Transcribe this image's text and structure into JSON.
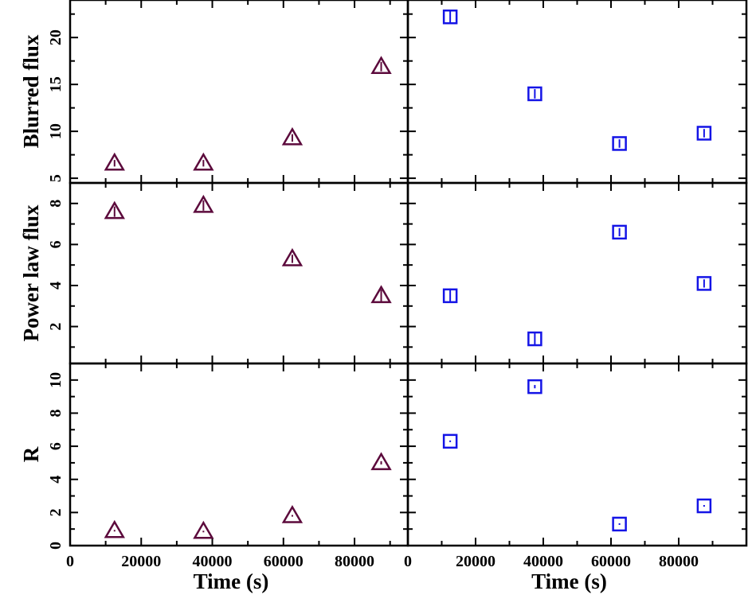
{
  "chart_data": [
    {
      "type": "scatter",
      "ylabel": "Blurred flux",
      "xlim": [
        0,
        95000
      ],
      "ylim": [
        4.5,
        24
      ],
      "yticks": [
        5,
        10,
        15,
        20
      ],
      "series": [
        {
          "marker": "triangle",
          "color": "#5c0a3c",
          "x": [
            12500,
            37500,
            62500,
            87500
          ],
          "y": [
            6.6,
            6.6,
            9.3,
            16.9
          ],
          "err": [
            0.35,
            0.35,
            0.4,
            0.5
          ]
        }
      ]
    },
    {
      "type": "scatter",
      "xlim": [
        0,
        100000
      ],
      "ylim": [
        4.5,
        24
      ],
      "series": [
        {
          "marker": "square",
          "color": "#1414e6",
          "x": [
            12500,
            37500,
            62500,
            87500
          ],
          "y": [
            22.2,
            14.0,
            8.7,
            9.8
          ],
          "err": [
            0.6,
            0.5,
            0.45,
            0.45
          ]
        }
      ]
    },
    {
      "type": "scatter",
      "ylabel": "Power law flux",
      "xlim": [
        0,
        95000
      ],
      "ylim": [
        0.2,
        9
      ],
      "yticks": [
        2,
        4,
        6,
        8
      ],
      "series": [
        {
          "marker": "triangle",
          "color": "#5c0a3c",
          "x": [
            12500,
            37500,
            62500,
            87500
          ],
          "y": [
            7.6,
            7.9,
            5.3,
            3.5
          ],
          "err": [
            0.25,
            0.25,
            0.2,
            0.3
          ]
        }
      ]
    },
    {
      "type": "scatter",
      "xlim": [
        0,
        100000
      ],
      "ylim": [
        0.2,
        9
      ],
      "series": [
        {
          "marker": "square",
          "color": "#1414e6",
          "x": [
            12500,
            37500,
            62500,
            87500
          ],
          "y": [
            3.5,
            1.4,
            6.6,
            4.1
          ],
          "err": [
            0.35,
            0.3,
            0.2,
            0.2
          ]
        }
      ]
    },
    {
      "type": "scatter",
      "ylabel": "R",
      "xlabel": "Time (s)",
      "xlim": [
        0,
        95000
      ],
      "ylim": [
        0,
        11
      ],
      "yticks": [
        0,
        2,
        4,
        6,
        8,
        10
      ],
      "xticks": [
        0,
        20000,
        40000,
        60000,
        80000
      ],
      "series": [
        {
          "marker": "triangle",
          "color": "#5c0a3c",
          "x": [
            12500,
            37500,
            62500,
            87500
          ],
          "y": [
            0.9,
            0.85,
            1.8,
            5.0
          ],
          "err": [
            0.03,
            0.03,
            0.05,
            0.1
          ]
        }
      ]
    },
    {
      "type": "scatter",
      "xlabel": "Time (s)",
      "xlim": [
        0,
        100000
      ],
      "ylim": [
        0,
        11
      ],
      "xticks": [
        0,
        20000,
        40000,
        60000,
        80000
      ],
      "series": [
        {
          "marker": "square",
          "color": "#1414e6",
          "x": [
            12500,
            37500,
            62500,
            87500
          ],
          "y": [
            6.3,
            9.6,
            1.3,
            2.4
          ],
          "err": [
            0.05,
            0.1,
            0.05,
            0.05
          ]
        }
      ]
    }
  ]
}
